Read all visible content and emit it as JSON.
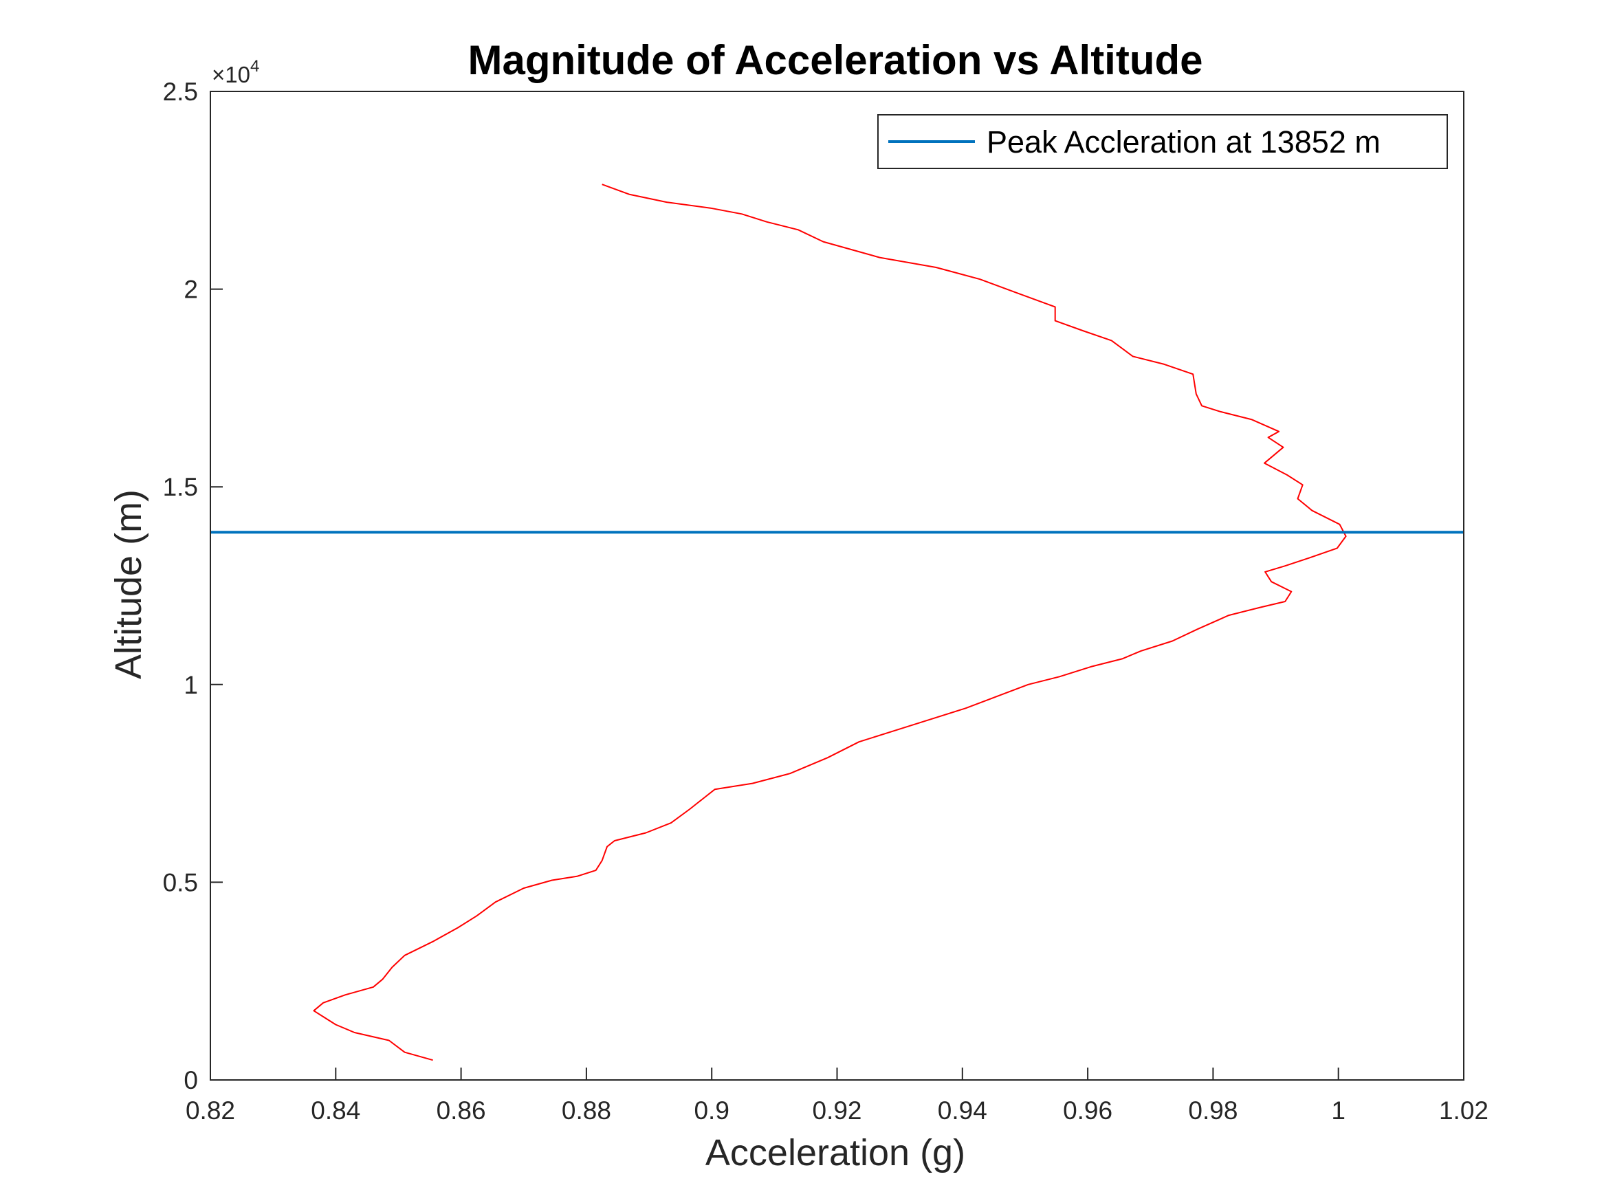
{
  "chart_data": {
    "type": "line",
    "title": "Magnitude of Acceleration vs Altitude",
    "xlabel": "Acceleration (g)",
    "ylabel": "Altitude (m)",
    "xlim": [
      0.82,
      1.02
    ],
    "ylim": [
      0,
      25000
    ],
    "x_ticks": [
      0.82,
      0.84,
      0.86,
      0.88,
      0.9,
      0.92,
      0.94,
      0.96,
      0.98,
      1,
      1.02
    ],
    "x_tick_labels": [
      "0.82",
      "0.84",
      "0.86",
      "0.88",
      "0.9",
      "0.92",
      "0.94",
      "0.96",
      "0.98",
      "1",
      "1.02"
    ],
    "y_ticks": [
      0,
      5000,
      10000,
      15000,
      20000,
      25000
    ],
    "y_tick_labels": [
      "0",
      "0.5",
      "1",
      "1.5",
      "2",
      "2.5"
    ],
    "y_exponent_prefix": "×10",
    "y_exponent_power": "4",
    "grid": false,
    "legend_position": "top-right",
    "series": [
      {
        "name": "",
        "color": "#ff0000",
        "x": [
          0.8555,
          0.851,
          0.8485,
          0.843,
          0.84,
          0.838,
          0.8365,
          0.838,
          0.8415,
          0.846,
          0.8475,
          0.849,
          0.851,
          0.8555,
          0.8595,
          0.8625,
          0.8655,
          0.87,
          0.8745,
          0.8785,
          0.8815,
          0.8825,
          0.8833,
          0.8845,
          0.8895,
          0.8935,
          0.8965,
          0.8985,
          0.9005,
          0.9065,
          0.9125,
          0.9185,
          0.9235,
          0.9295,
          0.9355,
          0.9405,
          0.9455,
          0.9505,
          0.9555,
          0.9605,
          0.9655,
          0.9685,
          0.9735,
          0.9775,
          0.9825,
          0.9875,
          0.9915,
          0.9925,
          0.9893,
          0.9883,
          0.9915,
          0.9953,
          0.9998,
          1.0012,
          1.0002,
          0.9958,
          0.9935,
          0.9943,
          0.9918,
          0.9882,
          0.9912,
          0.9888,
          0.9905,
          0.9862,
          0.9812,
          0.9782,
          0.9773,
          0.9768,
          0.9722,
          0.9672,
          0.9638,
          0.9592,
          0.9548,
          0.9548,
          0.9488,
          0.9428,
          0.9358,
          0.9268,
          0.9178,
          0.9138,
          0.9088,
          0.9048,
          0.8998,
          0.8928,
          0.8868,
          0.8825
        ],
        "y": [
          500,
          700,
          1000,
          1200,
          1400,
          1600,
          1750,
          1950,
          2150,
          2350,
          2550,
          2850,
          3150,
          3500,
          3850,
          4150,
          4500,
          4850,
          5050,
          5150,
          5300,
          5550,
          5900,
          6050,
          6250,
          6500,
          6850,
          7100,
          7350,
          7500,
          7750,
          8150,
          8550,
          8850,
          9150,
          9400,
          9700,
          10000,
          10200,
          10450,
          10650,
          10850,
          11100,
          11400,
          11750,
          11950,
          12100,
          12350,
          12600,
          12850,
          13000,
          13200,
          13450,
          13750,
          14050,
          14400,
          14700,
          15050,
          15300,
          15600,
          16000,
          16250,
          16400,
          16700,
          16900,
          17050,
          17350,
          17850,
          18100,
          18300,
          18700,
          18950,
          19200,
          19550,
          19900,
          20250,
          20550,
          20800,
          21200,
          21500,
          21700,
          21900,
          22050,
          22200,
          22400,
          22650
        ]
      },
      {
        "name": "Peak Accleration at 13852 m",
        "color": "#0072bd",
        "x": [
          0.82,
          1.02
        ],
        "y": [
          13852,
          13852
        ]
      }
    ]
  }
}
